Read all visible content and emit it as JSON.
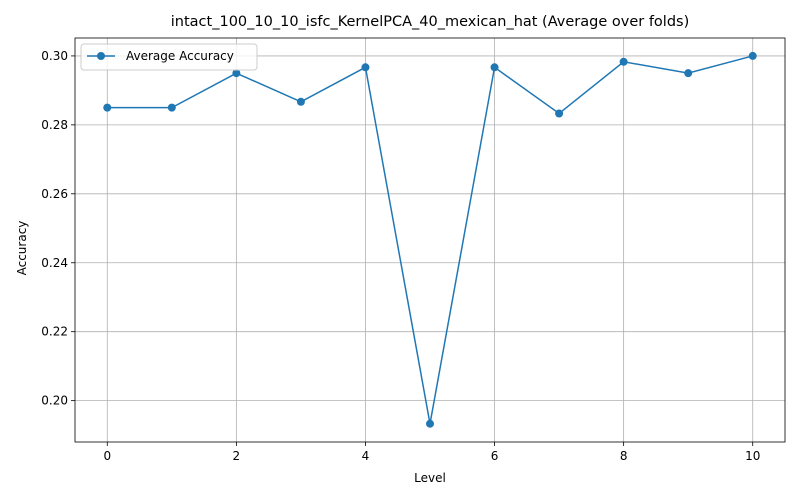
{
  "chart_data": {
    "type": "line",
    "title": "intact_100_10_10_isfc_KernelPCA_40_mexican_hat (Average over folds)",
    "xlabel": "Level",
    "ylabel": "Accuracy",
    "x": [
      0,
      1,
      2,
      3,
      4,
      5,
      6,
      7,
      8,
      9,
      10
    ],
    "series": [
      {
        "name": "Average Accuracy",
        "color": "#1f77b4",
        "values": [
          0.285,
          0.285,
          0.295,
          0.2867,
          0.2967,
          0.1933,
          0.2967,
          0.2833,
          0.2983,
          0.295,
          0.3
        ]
      }
    ],
    "xlim": [
      -0.5,
      10.5
    ],
    "ylim": [
      0.188,
      0.3052
    ],
    "xticks": [
      0,
      2,
      4,
      6,
      8,
      10
    ],
    "xtick_labels": [
      "0",
      "2",
      "4",
      "6",
      "8",
      "10"
    ],
    "yticks": [
      0.2,
      0.22,
      0.24,
      0.26,
      0.28,
      0.3
    ],
    "ytick_labels": [
      "0.20",
      "0.22",
      "0.24",
      "0.26",
      "0.28",
      "0.30"
    ],
    "grid": true,
    "legend_position": "top-left"
  }
}
